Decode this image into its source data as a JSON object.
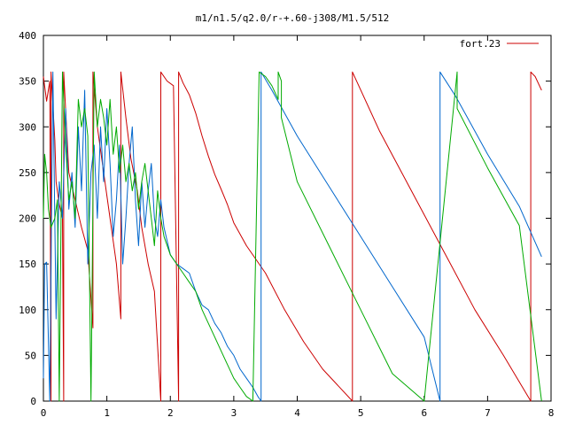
{
  "chart_data": {
    "type": "line",
    "title": "m1/n1.5/q2.0/r-+.60-j308/M1.5/512",
    "xlabel": "",
    "ylabel": "",
    "xlim": [
      0,
      8
    ],
    "ylim": [
      0,
      400
    ],
    "x_ticks": [
      "0",
      "1",
      "2",
      "3",
      "4",
      "5",
      "6",
      "7",
      "8"
    ],
    "y_ticks": [
      "0",
      "50",
      "100",
      "150",
      "200",
      "250",
      "300",
      "350",
      "400"
    ],
    "grid": false,
    "legend": {
      "position": "top-right",
      "entries": [
        "fort.23"
      ]
    },
    "series": [
      {
        "name": "fort.23",
        "color": "#cc0000",
        "x": [
          0.0,
          0.05,
          0.1,
          0.12,
          0.12,
          0.18,
          0.2,
          0.25,
          0.3,
          0.32,
          0.32,
          0.4,
          0.5,
          0.6,
          0.7,
          0.78,
          0.78,
          0.85,
          0.95,
          1.05,
          1.15,
          1.22,
          1.22,
          1.3,
          1.38,
          1.48,
          1.55,
          1.65,
          1.75,
          1.85,
          1.85,
          1.95,
          2.05,
          2.13,
          2.13,
          2.2,
          2.3,
          2.4,
          2.5,
          2.6,
          2.7,
          2.8,
          2.9,
          3.0,
          3.2,
          3.5,
          3.8,
          4.1,
          4.4,
          4.87,
          4.87,
          5.3,
          5.8,
          6.3,
          6.8,
          7.25,
          7.68,
          7.68,
          7.75,
          7.85
        ],
        "y": [
          355,
          328,
          350,
          0,
          360,
          285,
          240,
          215,
          200,
          0,
          360,
          250,
          220,
          190,
          165,
          80,
          360,
          300,
          250,
          200,
          150,
          90,
          360,
          310,
          265,
          230,
          190,
          150,
          120,
          0,
          360,
          350,
          345,
          0,
          360,
          348,
          335,
          315,
          290,
          268,
          248,
          232,
          215,
          195,
          170,
          140,
          100,
          65,
          35,
          0,
          360,
          295,
          230,
          165,
          100,
          50,
          0,
          360,
          355,
          340
        ]
      },
      {
        "name": "",
        "color": "#0066cc",
        "x": [
          0.0,
          0.02,
          0.05,
          0.1,
          0.15,
          0.2,
          0.25,
          0.3,
          0.35,
          0.4,
          0.45,
          0.5,
          0.55,
          0.6,
          0.65,
          0.7,
          0.75,
          0.8,
          0.85,
          0.9,
          0.95,
          1.0,
          1.05,
          1.1,
          1.15,
          1.2,
          1.25,
          1.3,
          1.35,
          1.4,
          1.45,
          1.5,
          1.55,
          1.6,
          1.65,
          1.7,
          1.75,
          1.8,
          1.85,
          1.9,
          2.0,
          2.1,
          2.2,
          2.3,
          2.4,
          2.5,
          2.6,
          2.7,
          2.8,
          2.9,
          3.0,
          3.1,
          3.2,
          3.3,
          3.38,
          3.43,
          3.43,
          3.6,
          4.0,
          4.5,
          5.0,
          5.5,
          6.0,
          6.25,
          6.25,
          6.5,
          7.0,
          7.5,
          7.85
        ],
        "y": [
          25,
          150,
          152,
          0,
          360,
          90,
          240,
          200,
          320,
          210,
          250,
          190,
          300,
          230,
          340,
          150,
          250,
          280,
          200,
          300,
          240,
          320,
          260,
          180,
          220,
          280,
          150,
          200,
          260,
          300,
          220,
          170,
          240,
          190,
          230,
          260,
          200,
          180,
          220,
          190,
          160,
          150,
          145,
          140,
          120,
          105,
          100,
          85,
          75,
          60,
          50,
          35,
          25,
          15,
          5,
          0,
          360,
          340,
          290,
          235,
          180,
          125,
          70,
          0,
          360,
          333,
          270,
          213,
          158
        ]
      },
      {
        "name": "",
        "color": "#00aa00",
        "x": [
          0.0,
          0.02,
          0.05,
          0.08,
          0.12,
          0.15,
          0.18,
          0.22,
          0.25,
          0.3,
          0.35,
          0.4,
          0.45,
          0.5,
          0.55,
          0.6,
          0.65,
          0.7,
          0.75,
          0.8,
          0.85,
          0.9,
          0.95,
          1.0,
          1.05,
          1.1,
          1.15,
          1.2,
          1.25,
          1.3,
          1.35,
          1.4,
          1.45,
          1.5,
          1.55,
          1.6,
          1.65,
          1.7,
          1.75,
          1.8,
          1.85,
          1.9,
          2.0,
          2.1,
          2.2,
          2.3,
          2.4,
          2.5,
          2.6,
          2.7,
          2.8,
          2.9,
          3.0,
          3.1,
          3.2,
          3.3,
          3.4,
          3.5,
          3.6,
          3.7,
          3.7,
          3.75,
          3.75,
          4.0,
          4.5,
          5.0,
          5.5,
          6.0,
          6.52,
          6.52,
          7.0,
          7.5,
          7.85
        ],
        "y": [
          200,
          270,
          250,
          210,
          190,
          195,
          200,
          220,
          0,
          360,
          280,
          220,
          240,
          200,
          330,
          300,
          320,
          290,
          0,
          360,
          300,
          330,
          310,
          280,
          330,
          270,
          300,
          250,
          280,
          240,
          260,
          230,
          250,
          210,
          240,
          260,
          230,
          200,
          170,
          230,
          200,
          180,
          160,
          150,
          140,
          130,
          120,
          100,
          85,
          70,
          55,
          40,
          25,
          15,
          5,
          0,
          360,
          355,
          345,
          330,
          360,
          350,
          310,
          240,
          170,
          100,
          30,
          0,
          360,
          320,
          255,
          192,
          0
        ]
      }
    ]
  }
}
